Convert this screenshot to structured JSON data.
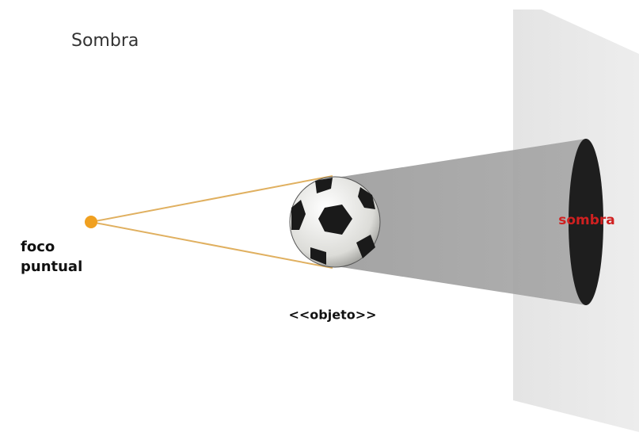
{
  "title": "Sombra",
  "labels": {
    "source": [
      "foco",
      "puntual"
    ],
    "object": "<<objeto>>",
    "shadow": "sombra"
  }
}
